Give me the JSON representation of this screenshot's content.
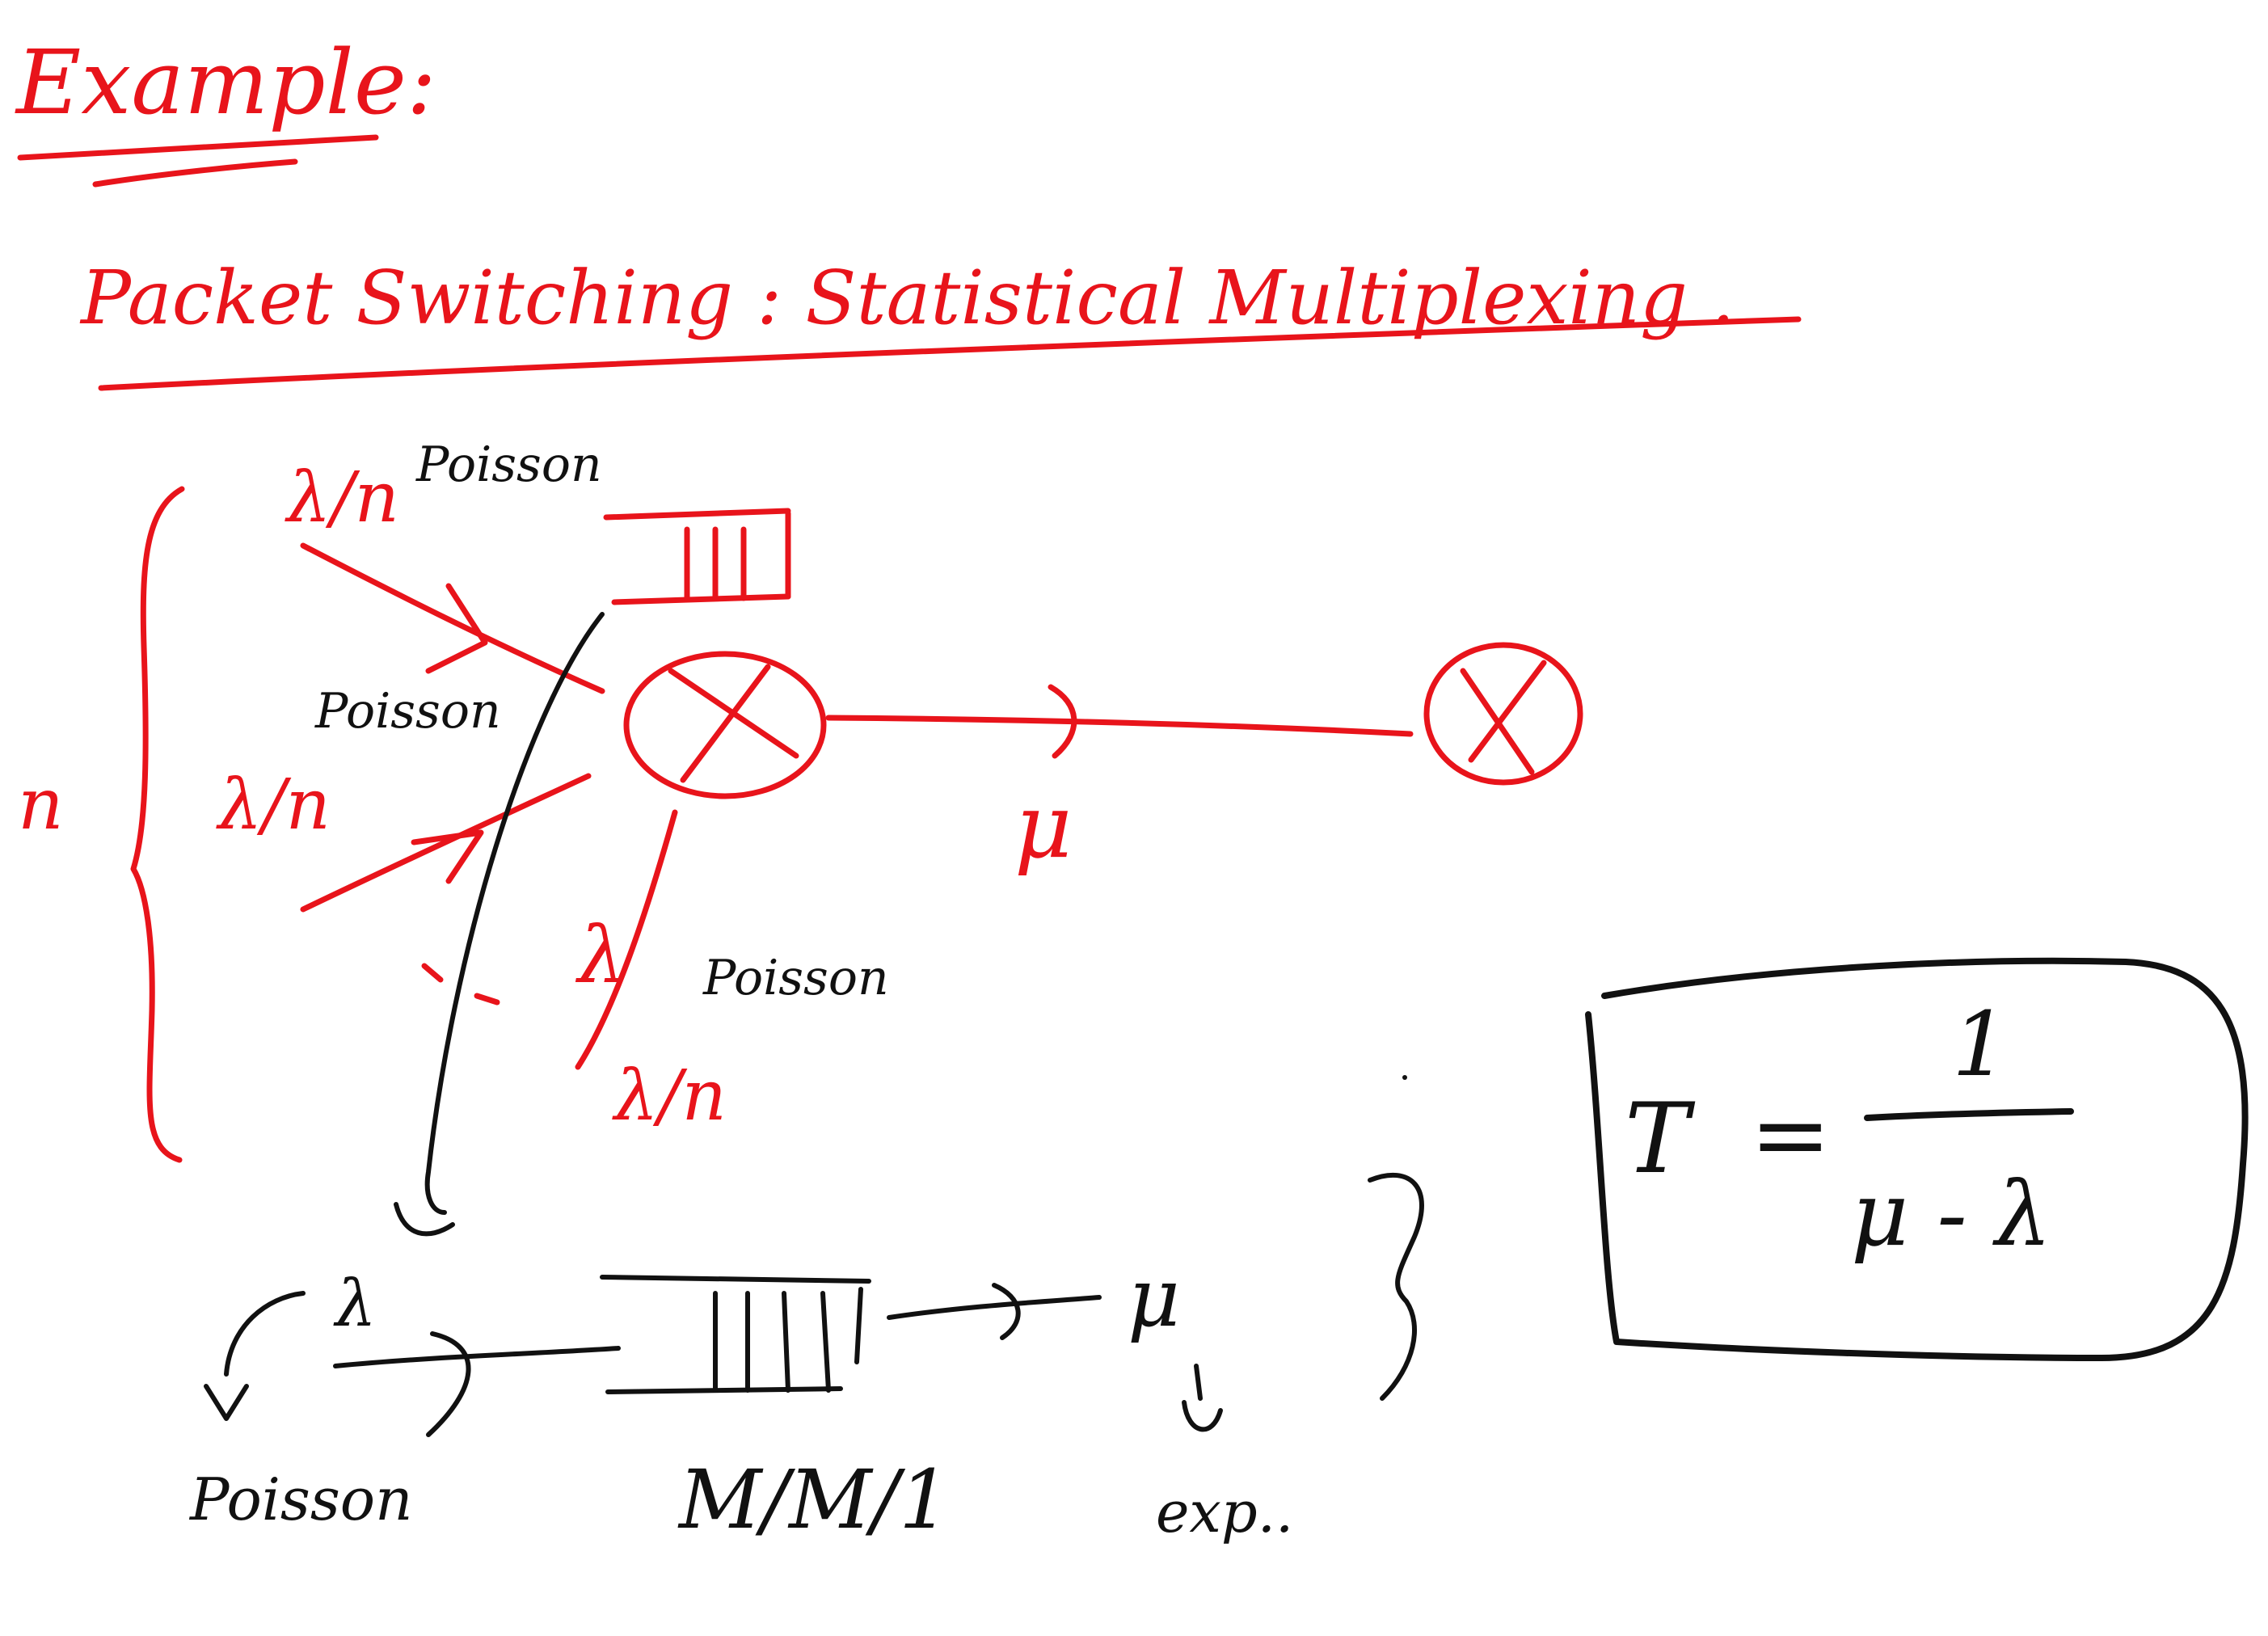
{
  "heading": "Example:",
  "subtitle": "Packet Switching : Statistical Multiplexing .",
  "labels": {
    "n_sources": "n",
    "rate_top": "λ/n",
    "poisson_top": "Poisson",
    "rate_mid": "λ/n",
    "poisson_mid": "Poisson",
    "rate_total": "λ",
    "poisson_total": "Poisson",
    "rate_bottom": "λ/n",
    "service_rate": "μ",
    "queue_arrival": "λ",
    "queue_arrival_dist": "Poisson",
    "queue_model": "M/M/1",
    "queue_service": "μ",
    "queue_service_dist": "exp.."
  },
  "formula": {
    "lhs": "T",
    "eq": "=",
    "numerator": "1",
    "denominator": "μ - λ"
  },
  "colors": {
    "red_ink": "#e8141b",
    "black_ink": "#111111",
    "background": "#ffffff"
  }
}
